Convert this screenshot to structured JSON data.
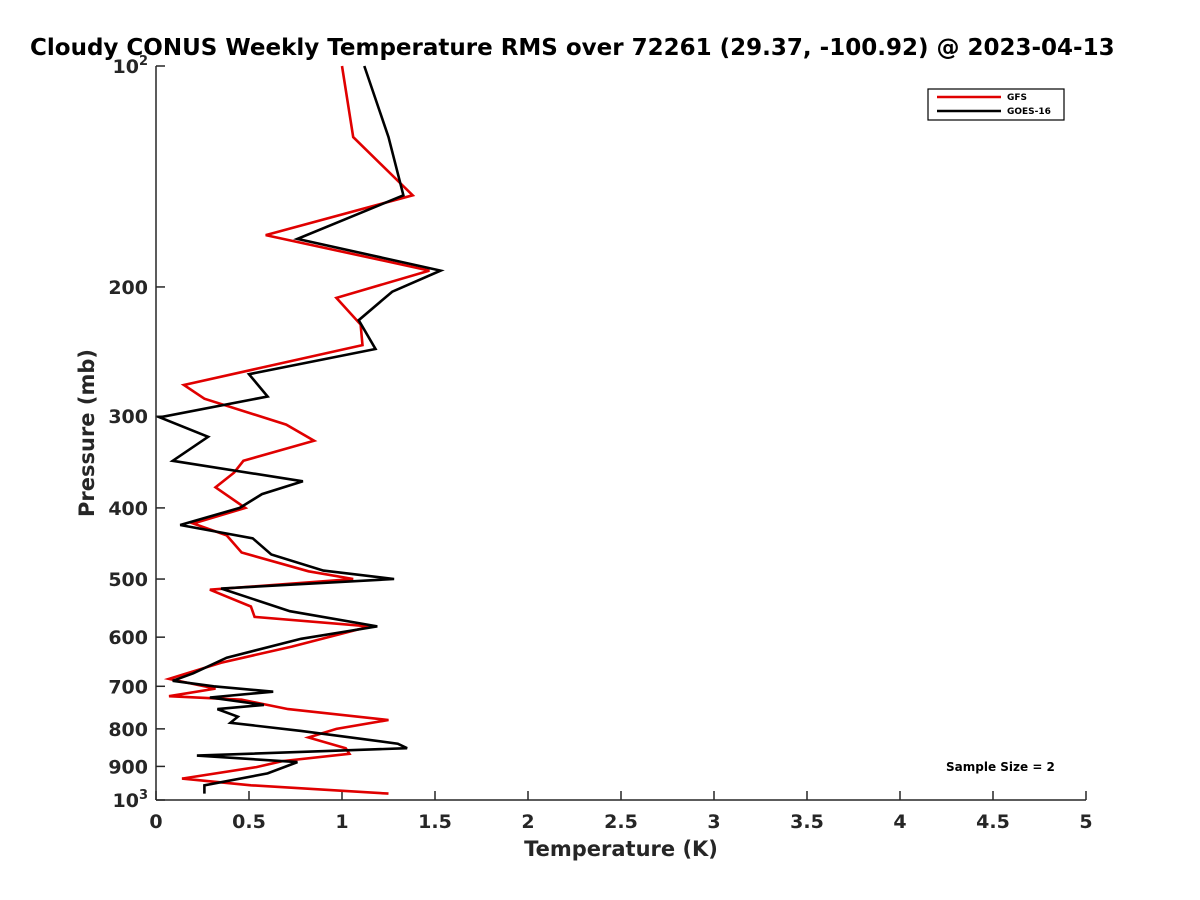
{
  "chart_data": {
    "type": "line",
    "title": "Cloudy CONUS Weekly Temperature RMS over 72261 (29.37, -100.92) @ 2023-04-13",
    "xlabel": "Temperature (K)",
    "ylabel": "Pressure (mb)",
    "xlim": [
      0,
      5
    ],
    "ylim": [
      100,
      1000
    ],
    "y_scale": "log",
    "y_reversed": true,
    "x_ticks": [
      "0",
      "0.5",
      "1",
      "1.5",
      "2",
      "2.5",
      "3",
      "3.5",
      "4",
      "4.5",
      "5"
    ],
    "y_ticks": [
      {
        "value": 100,
        "base": "10",
        "exp": "2"
      },
      {
        "value": 200,
        "label": "200"
      },
      {
        "value": 300,
        "label": "300"
      },
      {
        "value": 400,
        "label": "400"
      },
      {
        "value": 500,
        "label": "500"
      },
      {
        "value": 600,
        "label": "600"
      },
      {
        "value": 700,
        "label": "700"
      },
      {
        "value": 800,
        "label": "800"
      },
      {
        "value": 900,
        "label": "900"
      },
      {
        "value": 1000,
        "base": "10",
        "exp": "3"
      }
    ],
    "legend": {
      "position": "top-right"
    },
    "annotation": "Sample Size = 2",
    "grid": false,
    "series": [
      {
        "name": "GFS",
        "color": "#e00000",
        "points": [
          [
            1.0,
            100
          ],
          [
            1.06,
            125
          ],
          [
            1.38,
            150
          ],
          [
            0.59,
            170
          ],
          [
            1.47,
            190
          ],
          [
            0.97,
            207
          ],
          [
            1.1,
            225
          ],
          [
            1.11,
            240
          ],
          [
            0.15,
            272
          ],
          [
            0.26,
            284
          ],
          [
            0.7,
            308
          ],
          [
            0.85,
            324
          ],
          [
            0.47,
            345
          ],
          [
            0.42,
            358
          ],
          [
            0.32,
            375
          ],
          [
            0.48,
            400
          ],
          [
            0.2,
            420
          ],
          [
            0.38,
            436
          ],
          [
            0.46,
            460
          ],
          [
            0.82,
            488
          ],
          [
            1.06,
            500
          ],
          [
            0.29,
            517
          ],
          [
            0.51,
            545
          ],
          [
            0.53,
            563
          ],
          [
            1.15,
            580
          ],
          [
            0.73,
            618
          ],
          [
            0.35,
            650
          ],
          [
            0.07,
            684
          ],
          [
            0.32,
            705
          ],
          [
            0.07,
            722
          ],
          [
            0.46,
            730
          ],
          [
            0.71,
            752
          ],
          [
            1.25,
            778
          ],
          [
            0.97,
            800
          ],
          [
            0.82,
            822
          ],
          [
            1.02,
            850
          ],
          [
            1.04,
            865
          ],
          [
            0.68,
            885
          ],
          [
            0.54,
            902
          ],
          [
            0.14,
            935
          ],
          [
            0.51,
            955
          ],
          [
            1.25,
            980
          ]
        ]
      },
      {
        "name": "GOES-16",
        "color": "#000000",
        "points": [
          [
            1.12,
            100
          ],
          [
            1.25,
            125
          ],
          [
            1.33,
            150
          ],
          [
            0.76,
            172
          ],
          [
            1.53,
            190
          ],
          [
            1.27,
            203
          ],
          [
            1.09,
            222
          ],
          [
            1.18,
            243
          ],
          [
            0.5,
            263
          ],
          [
            0.6,
            282
          ],
          [
            0.02,
            301
          ],
          [
            0.28,
            320
          ],
          [
            0.09,
            345
          ],
          [
            0.79,
            368
          ],
          [
            0.57,
            383
          ],
          [
            0.45,
            400
          ],
          [
            0.13,
            422
          ],
          [
            0.52,
            440
          ],
          [
            0.62,
            463
          ],
          [
            0.9,
            487
          ],
          [
            1.28,
            500
          ],
          [
            0.35,
            515
          ],
          [
            0.72,
            553
          ],
          [
            1.19,
            580
          ],
          [
            0.78,
            603
          ],
          [
            0.38,
            640
          ],
          [
            0.2,
            672
          ],
          [
            0.09,
            688
          ],
          [
            0.31,
            700
          ],
          [
            0.63,
            712
          ],
          [
            0.29,
            725
          ],
          [
            0.58,
            742
          ],
          [
            0.33,
            752
          ],
          [
            0.44,
            770
          ],
          [
            0.4,
            785
          ],
          [
            0.78,
            805
          ],
          [
            1.3,
            838
          ],
          [
            1.35,
            850
          ],
          [
            0.22,
            870
          ],
          [
            0.76,
            888
          ],
          [
            0.6,
            920
          ],
          [
            0.26,
            955
          ],
          [
            0.26,
            980
          ]
        ]
      }
    ]
  }
}
